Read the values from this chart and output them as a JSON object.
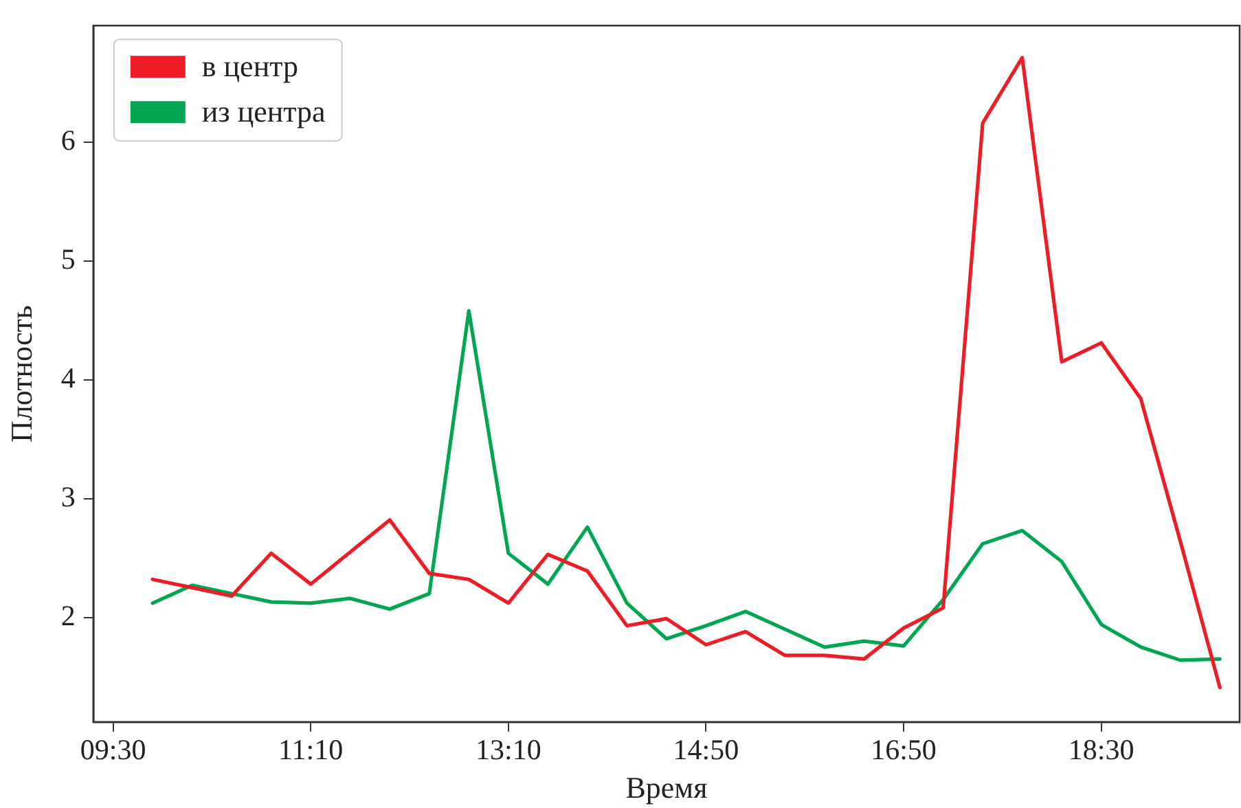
{
  "chart_data": {
    "type": "line",
    "xlabel": "Время",
    "ylabel": "Плотность",
    "categories": [
      "09:30",
      null,
      null,
      null,
      null,
      "11:10",
      null,
      null,
      null,
      null,
      "13:10",
      null,
      null,
      null,
      null,
      "14:50",
      null,
      null,
      null,
      null,
      "16:50",
      null,
      null,
      null,
      null,
      "18:30",
      null,
      null,
      null
    ],
    "series": [
      {
        "name": "в центр",
        "color": "#ee1c25",
        "values": [
          null,
          2.32,
          2.25,
          2.18,
          2.54,
          2.28,
          2.55,
          2.82,
          2.37,
          2.32,
          2.12,
          2.53,
          2.39,
          1.93,
          1.99,
          1.77,
          1.88,
          1.68,
          1.68,
          1.65,
          1.91,
          2.08,
          6.16,
          6.71,
          4.15,
          4.31,
          3.84,
          2.64,
          1.41
        ]
      },
      {
        "name": "из центра",
        "color": "#00a651",
        "values": [
          null,
          2.12,
          2.27,
          2.2,
          2.13,
          2.12,
          2.16,
          2.07,
          2.2,
          4.58,
          2.54,
          2.28,
          2.76,
          2.12,
          1.82,
          1.93,
          2.05,
          1.9,
          1.75,
          1.8,
          1.76,
          2.15,
          2.62,
          2.73,
          2.47,
          1.94,
          1.75,
          1.64,
          1.65
        ]
      }
    ],
    "ylim": [
      1.12,
      6.98
    ],
    "yticks": [
      2,
      3,
      4,
      5,
      6
    ],
    "grid": false,
    "legend": "top left",
    "marker": "none",
    "line_style": "solid"
  }
}
